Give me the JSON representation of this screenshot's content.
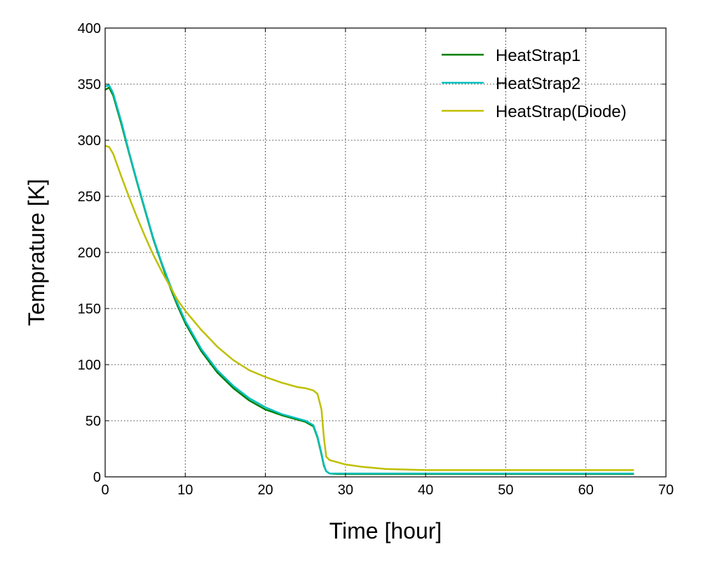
{
  "chart_data": {
    "type": "line",
    "xlabel": "Time [hour]",
    "ylabel": "Temprature [K]",
    "xlim": [
      0,
      70
    ],
    "ylim": [
      0,
      400
    ],
    "xticks": [
      0,
      10,
      20,
      30,
      40,
      50,
      60,
      70
    ],
    "yticks": [
      0,
      50,
      100,
      150,
      200,
      250,
      300,
      350,
      400
    ],
    "grid": true,
    "legend_position": "top-right",
    "series": [
      {
        "name": "HeatStrap1",
        "color": "#007f00",
        "x": [
          0,
          0.5,
          1,
          2,
          3,
          4,
          5,
          6,
          7,
          8,
          9,
          10,
          12,
          14,
          16,
          18,
          20,
          22,
          24,
          25,
          26,
          26.5,
          27,
          27.3,
          27.6,
          28,
          29,
          30,
          35,
          40,
          50,
          60,
          66
        ],
        "y": [
          345,
          347,
          340,
          315,
          288,
          262,
          237,
          212,
          191,
          171,
          153,
          137,
          112,
          93,
          79,
          68,
          60,
          55,
          51,
          49,
          45,
          35,
          20,
          10,
          5,
          3,
          2.5,
          2.5,
          2.5,
          2.5,
          2.5,
          2.5,
          2.5
        ]
      },
      {
        "name": "HeatStrap2",
        "color": "#00bfbf",
        "x": [
          0,
          0.5,
          1,
          2,
          3,
          4,
          5,
          6,
          7,
          8,
          9,
          10,
          12,
          14,
          16,
          18,
          20,
          22,
          24,
          25,
          26,
          26.5,
          27,
          27.3,
          27.6,
          28,
          29,
          30,
          35,
          40,
          50,
          60,
          66
        ],
        "y": [
          348,
          349,
          342,
          317,
          289,
          263,
          238,
          213,
          192,
          173,
          155,
          139,
          114,
          95,
          81,
          70,
          62,
          56,
          52,
          50,
          46,
          36,
          21,
          11,
          5,
          3,
          3,
          3,
          3,
          3,
          3,
          3,
          3
        ]
      },
      {
        "name": "HeatStrap(Diode)",
        "color": "#bfbf00",
        "x": [
          0,
          0.5,
          1,
          2,
          3,
          4,
          5,
          6,
          7,
          8,
          9,
          10,
          12,
          14,
          16,
          18,
          20,
          22,
          24,
          25,
          26,
          26.5,
          27,
          27.3,
          27.6,
          28,
          29,
          30,
          32,
          35,
          40,
          50,
          60,
          66
        ],
        "y": [
          295,
          294,
          288,
          268,
          249,
          231,
          214,
          198,
          184,
          171,
          158,
          148,
          131,
          116,
          104,
          95,
          89,
          84,
          80,
          79,
          77,
          74,
          60,
          35,
          18,
          15,
          13,
          11,
          9,
          7,
          6,
          6,
          6,
          6
        ]
      }
    ]
  }
}
